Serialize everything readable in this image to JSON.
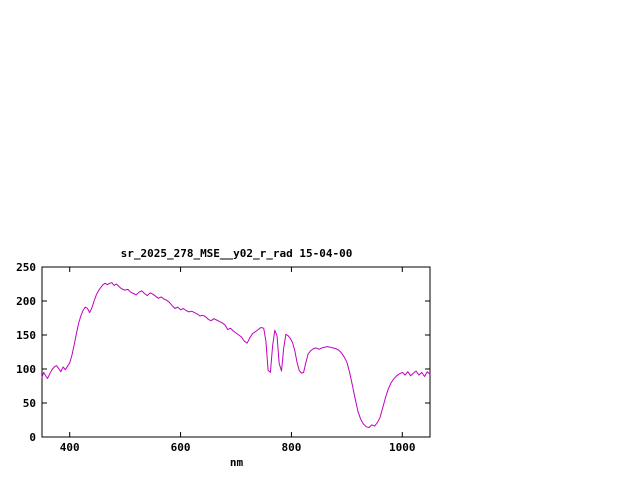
{
  "window": {
    "background_color": "#ffffff"
  },
  "chart_data": {
    "type": "line",
    "title": "sr_2025_278_MSE__y02_r_rad 15-04-00",
    "xlabel": "nm",
    "ylabel": "",
    "xlim": [
      350,
      1050
    ],
    "ylim": [
      0,
      250
    ],
    "xticks": [
      400,
      600,
      800,
      1000
    ],
    "yticks": [
      0,
      50,
      100,
      150,
      200,
      250
    ],
    "grid": false,
    "legend_position": "none",
    "line_color": "#c000c0",
    "axis_color": "#000000",
    "series": [
      {
        "name": "sr_2025_278_MSE__y02_r_rad",
        "points": [
          [
            350,
            88
          ],
          [
            353,
            95
          ],
          [
            356,
            91
          ],
          [
            360,
            86
          ],
          [
            364,
            93
          ],
          [
            368,
            99
          ],
          [
            372,
            103
          ],
          [
            376,
            105
          ],
          [
            380,
            101
          ],
          [
            384,
            96
          ],
          [
            388,
            103
          ],
          [
            392,
            99
          ],
          [
            396,
            104
          ],
          [
            400,
            109
          ],
          [
            404,
            120
          ],
          [
            408,
            135
          ],
          [
            412,
            152
          ],
          [
            416,
            167
          ],
          [
            420,
            178
          ],
          [
            424,
            186
          ],
          [
            428,
            191
          ],
          [
            432,
            189
          ],
          [
            436,
            183
          ],
          [
            440,
            190
          ],
          [
            444,
            200
          ],
          [
            448,
            209
          ],
          [
            452,
            215
          ],
          [
            456,
            220
          ],
          [
            460,
            224
          ],
          [
            464,
            226
          ],
          [
            468,
            224
          ],
          [
            472,
            226
          ],
          [
            476,
            227
          ],
          [
            480,
            223
          ],
          [
            484,
            225
          ],
          [
            488,
            222
          ],
          [
            492,
            219
          ],
          [
            496,
            217
          ],
          [
            500,
            216
          ],
          [
            505,
            217
          ],
          [
            510,
            213
          ],
          [
            515,
            211
          ],
          [
            520,
            209
          ],
          [
            525,
            213
          ],
          [
            530,
            215
          ],
          [
            535,
            211
          ],
          [
            540,
            208
          ],
          [
            545,
            212
          ],
          [
            550,
            210
          ],
          [
            555,
            207
          ],
          [
            560,
            204
          ],
          [
            565,
            206
          ],
          [
            570,
            203
          ],
          [
            575,
            201
          ],
          [
            580,
            198
          ],
          [
            585,
            193
          ],
          [
            590,
            189
          ],
          [
            595,
            191
          ],
          [
            600,
            187
          ],
          [
            605,
            189
          ],
          [
            610,
            186
          ],
          [
            615,
            184
          ],
          [
            620,
            185
          ],
          [
            625,
            183
          ],
          [
            630,
            181
          ],
          [
            635,
            178
          ],
          [
            640,
            179
          ],
          [
            645,
            177
          ],
          [
            650,
            173
          ],
          [
            655,
            171
          ],
          [
            660,
            174
          ],
          [
            665,
            172
          ],
          [
            670,
            170
          ],
          [
            675,
            168
          ],
          [
            680,
            165
          ],
          [
            685,
            158
          ],
          [
            690,
            160
          ],
          [
            695,
            156
          ],
          [
            700,
            153
          ],
          [
            705,
            150
          ],
          [
            710,
            147
          ],
          [
            715,
            141
          ],
          [
            720,
            138
          ],
          [
            725,
            146
          ],
          [
            730,
            152
          ],
          [
            735,
            155
          ],
          [
            740,
            158
          ],
          [
            745,
            161
          ],
          [
            750,
            160
          ],
          [
            754,
            141
          ],
          [
            758,
            98
          ],
          [
            762,
            95
          ],
          [
            766,
            134
          ],
          [
            770,
            157
          ],
          [
            774,
            149
          ],
          [
            778,
            108
          ],
          [
            782,
            97
          ],
          [
            786,
            131
          ],
          [
            790,
            151
          ],
          [
            794,
            149
          ],
          [
            798,
            145
          ],
          [
            802,
            139
          ],
          [
            806,
            127
          ],
          [
            810,
            110
          ],
          [
            814,
            98
          ],
          [
            818,
            94
          ],
          [
            822,
            95
          ],
          [
            826,
            109
          ],
          [
            830,
            122
          ],
          [
            835,
            127
          ],
          [
            840,
            130
          ],
          [
            845,
            131
          ],
          [
            850,
            129
          ],
          [
            855,
            131
          ],
          [
            860,
            132
          ],
          [
            865,
            133
          ],
          [
            870,
            132
          ],
          [
            875,
            131
          ],
          [
            880,
            130
          ],
          [
            885,
            128
          ],
          [
            890,
            124
          ],
          [
            895,
            118
          ],
          [
            900,
            110
          ],
          [
            905,
            95
          ],
          [
            910,
            76
          ],
          [
            915,
            56
          ],
          [
            920,
            38
          ],
          [
            925,
            26
          ],
          [
            930,
            19
          ],
          [
            935,
            15
          ],
          [
            940,
            14
          ],
          [
            945,
            18
          ],
          [
            950,
            16
          ],
          [
            955,
            21
          ],
          [
            960,
            29
          ],
          [
            965,
            44
          ],
          [
            970,
            59
          ],
          [
            975,
            71
          ],
          [
            980,
            80
          ],
          [
            985,
            86
          ],
          [
            990,
            90
          ],
          [
            995,
            93
          ],
          [
            1000,
            95
          ],
          [
            1005,
            91
          ],
          [
            1010,
            96
          ],
          [
            1015,
            90
          ],
          [
            1020,
            94
          ],
          [
            1025,
            97
          ],
          [
            1030,
            91
          ],
          [
            1035,
            95
          ],
          [
            1040,
            89
          ],
          [
            1045,
            96
          ],
          [
            1050,
            92
          ]
        ]
      }
    ]
  }
}
